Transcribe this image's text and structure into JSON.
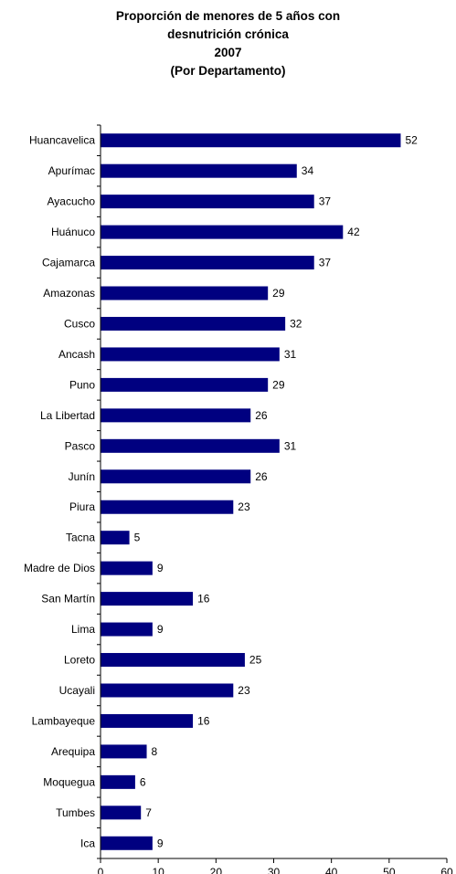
{
  "chart_data": {
    "type": "bar",
    "orientation": "horizontal",
    "title_lines": [
      "Proporción de menores de 5 años con",
      "desnutrición crónica",
      "2007",
      "(Por Departamento)"
    ],
    "categories": [
      "Huancavelica",
      "Apurímac",
      "Ayacucho",
      "Huánuco",
      "Cajamarca",
      "Amazonas",
      "Cusco",
      "Ancash",
      "Puno",
      "La Libertad",
      "Pasco",
      "Junín",
      "Piura",
      "Tacna",
      "Madre de Dios",
      "San Martín",
      "Lima",
      "Loreto",
      "Ucayali",
      "Lambayeque",
      "Arequipa",
      "Moquegua",
      "Tumbes",
      "Ica"
    ],
    "values": [
      52,
      34,
      37,
      42,
      37,
      29,
      32,
      31,
      29,
      26,
      31,
      26,
      23,
      5,
      9,
      16,
      9,
      25,
      23,
      16,
      8,
      6,
      7,
      9
    ],
    "value_labels": [
      "52",
      "34",
      "37",
      "42",
      "37",
      "29",
      "32",
      "31",
      "29",
      "26",
      "31",
      "26",
      "23",
      "5",
      "9",
      "16",
      "9",
      "25",
      "23",
      "16",
      "8",
      "6",
      "7",
      "9"
    ],
    "xlim": [
      0,
      60
    ],
    "xticks": [
      "0",
      "10",
      "20",
      "30",
      "40",
      "50",
      "60"
    ],
    "xlabel": "",
    "ylabel": "",
    "grid": false,
    "bar_color": "#000080"
  }
}
